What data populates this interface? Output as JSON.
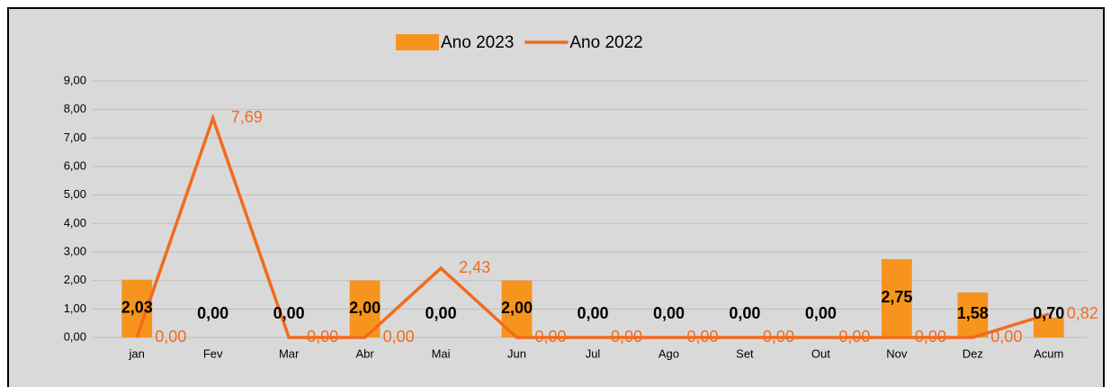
{
  "chart_data": {
    "type": "combo",
    "categories": [
      "jan",
      "Fev",
      "Mar",
      "Abr",
      "Mai",
      "Jun",
      "Jul",
      "Ago",
      "Set",
      "Out",
      "Nov",
      "Dez",
      "Acum"
    ],
    "series": [
      {
        "name": "Ano 2023",
        "type": "bar",
        "color": "#f7941d",
        "values": [
          2.03,
          0,
          0,
          2.0,
          0,
          2.0,
          0,
          0,
          0,
          0,
          2.75,
          1.58,
          0.7
        ],
        "value_labels": [
          "2,03",
          "0,00",
          "0,00",
          "2,00",
          "0,00",
          "2,00",
          "0,00",
          "0,00",
          "0,00",
          "0,00",
          "2,75",
          "1,58",
          "0,70"
        ]
      },
      {
        "name": "Ano 2022",
        "type": "line",
        "color": "#f26b1d",
        "values": [
          0,
          7.69,
          0,
          0,
          2.43,
          0,
          0,
          0,
          0,
          0,
          0,
          0,
          0.82
        ],
        "value_labels": [
          "0,00",
          "7,69",
          "0,00",
          "0,00",
          "2,43",
          "0,00",
          "0,00",
          "0,00",
          "0,00",
          "0,00",
          "0,00",
          "0,00",
          "0,82"
        ]
      }
    ],
    "ylim": [
      0,
      9
    ],
    "yticks": [
      {
        "value": 0,
        "label": "0,00"
      },
      {
        "value": 1,
        "label": "1,00"
      },
      {
        "value": 2,
        "label": "2,00"
      },
      {
        "value": 3,
        "label": "3,00"
      },
      {
        "value": 4,
        "label": "4,00"
      },
      {
        "value": 5,
        "label": "5,00"
      },
      {
        "value": 6,
        "label": "6,00"
      },
      {
        "value": 7,
        "label": "7,00"
      },
      {
        "value": 8,
        "label": "8,00"
      },
      {
        "value": 9,
        "label": "9,00"
      }
    ],
    "grid": true,
    "legend": "top"
  }
}
